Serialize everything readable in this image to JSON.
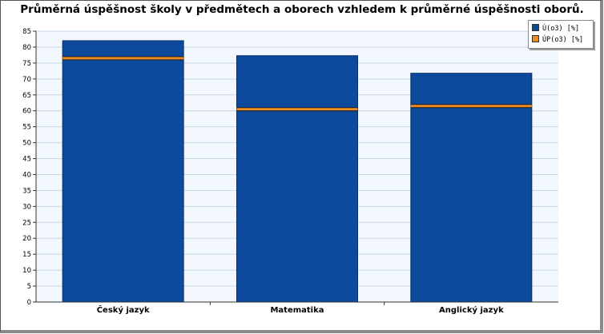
{
  "colors": {
    "series_u": "#0e4a9c",
    "series_up": "#f08a1c",
    "plot_bg": "#f2f7fd",
    "grid": "#c9d6e6"
  },
  "chart_data": {
    "type": "bar",
    "title": "Průměrná úspěšnost školy v předmětech a oborech vzhledem k průměrné úspěšnosti oborů.",
    "categories": [
      "Český jazyk",
      "Matematika",
      "Anglický jazyk"
    ],
    "series": [
      {
        "name": "Ú(o3) [%]",
        "kind": "bar",
        "values": [
          82,
          77.3,
          71.8
        ]
      },
      {
        "name": "ÚP(o3) [%]",
        "kind": "marker",
        "values": [
          76.5,
          60.5,
          61.5
        ]
      }
    ],
    "xlabel": "",
    "ylabel": "",
    "ylim": [
      0,
      85
    ],
    "yticks": [
      0,
      5,
      10,
      15,
      20,
      25,
      30,
      35,
      40,
      45,
      50,
      55,
      60,
      65,
      70,
      75,
      80,
      85
    ],
    "grid": true,
    "legend_position": "top-right"
  }
}
